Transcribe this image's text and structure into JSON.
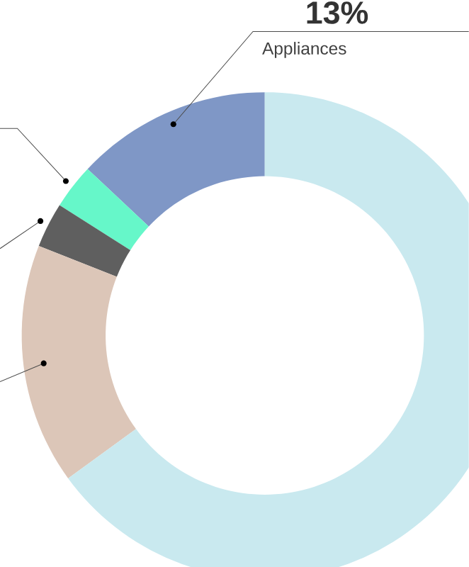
{
  "chart_data": {
    "type": "donut",
    "categories": [
      "Appliances",
      null,
      null,
      null,
      null
    ],
    "values": [
      13,
      3,
      3,
      16,
      65
    ],
    "colors": [
      "#7f97c6",
      "#66f7c9",
      "#5f5f5f",
      "#dcc6b8",
      "#c9e9ef"
    ],
    "value_labels": [
      "13%",
      null,
      null,
      null,
      null
    ]
  }
}
